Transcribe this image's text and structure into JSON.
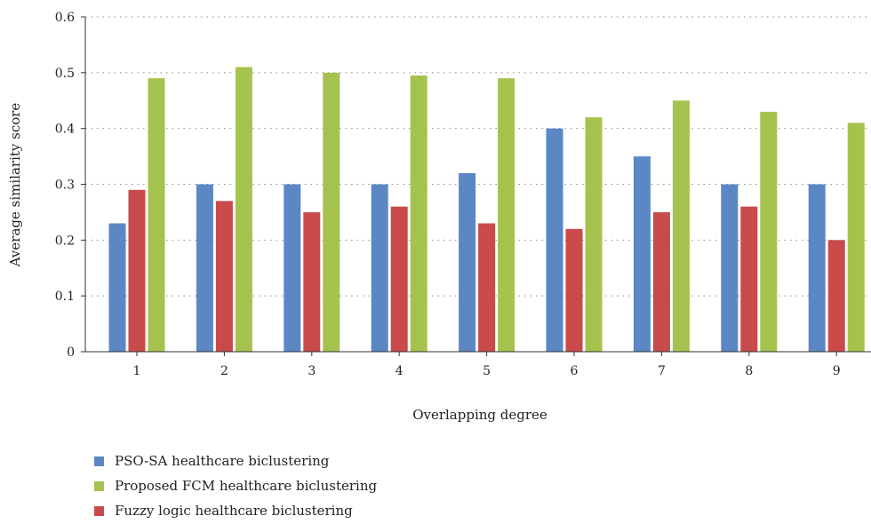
{
  "chart_data": {
    "type": "bar",
    "title": "",
    "xlabel": "Overlapping degree",
    "ylabel": "Average similarity score",
    "categories": [
      "1",
      "2",
      "3",
      "4",
      "5",
      "6",
      "7",
      "8",
      "9"
    ],
    "ylim": [
      0,
      0.6
    ],
    "yticks": [
      "0",
      "0.1",
      "0.2",
      "0.3",
      "0.4",
      "0.5",
      "0.6"
    ],
    "grid": "horizontal dotted",
    "series": [
      {
        "name": "PSO-SA healthcare biclustering",
        "color": "#5b87c4",
        "values": [
          0.23,
          0.3,
          0.3,
          0.3,
          0.32,
          0.4,
          0.35,
          0.3,
          0.3
        ]
      },
      {
        "name": "Fuzzy logic healthcare biclustering",
        "color": "#c84a4a",
        "values": [
          0.29,
          0.27,
          0.25,
          0.26,
          0.23,
          0.22,
          0.25,
          0.26,
          0.2
        ]
      },
      {
        "name": "Proposed FCM healthcare biclustering",
        "color": "#a6c24e",
        "values": [
          0.49,
          0.51,
          0.5,
          0.495,
          0.49,
          0.42,
          0.45,
          0.43,
          0.41
        ]
      }
    ],
    "legend_order": [
      0,
      2,
      1
    ],
    "legend_placement": "bottom-left"
  }
}
